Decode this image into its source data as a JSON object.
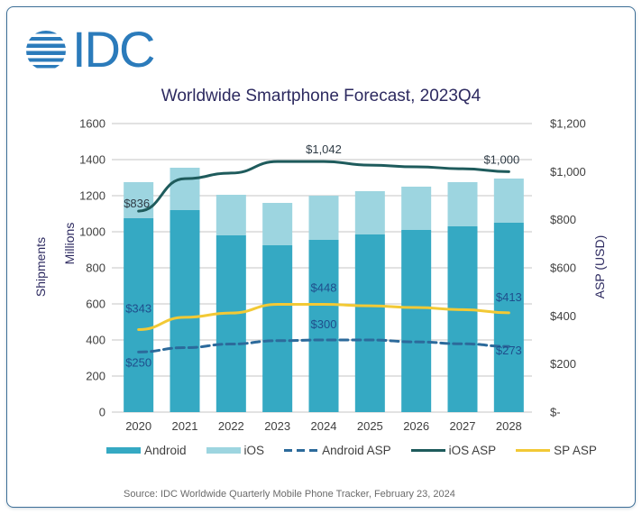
{
  "logo": {
    "text": "IDC",
    "color": "#2b7bbb"
  },
  "colors": {
    "android": "#35a9c3",
    "ios": "#9dd5e0",
    "android_asp": "#2c6a9b",
    "ios_asp": "#1e5b5c",
    "sp_asp": "#f2c935",
    "gridline": "#d0d0d0",
    "title": "#2d2a60"
  },
  "legend": [
    {
      "name": "Android",
      "style": "bar"
    },
    {
      "name": "iOS",
      "style": "bar"
    },
    {
      "name": "Android ASP",
      "style": "dashed-line"
    },
    {
      "name": "iOS ASP",
      "style": "line"
    },
    {
      "name": "SP ASP",
      "style": "line"
    }
  ],
  "source": "Source:  IDC Worldwide Quarterly Mobile Phone Tracker, February 23, 2024",
  "chart_data": {
    "type": "bar",
    "title": "Worldwide Smartphone Forecast, 2023Q4",
    "categories": [
      "2020",
      "2021",
      "2022",
      "2023",
      "2024",
      "2025",
      "2026",
      "2027",
      "2028"
    ],
    "y_left": {
      "label_outer": "Shipments",
      "label_inner": "Millions",
      "range": [
        0,
        1600
      ],
      "ticks": [
        "0",
        "200",
        "400",
        "600",
        "800",
        "1000",
        "1200",
        "1400",
        "1600"
      ]
    },
    "y_right": {
      "label": "ASP (USD)",
      "range": [
        0,
        1200
      ],
      "ticks": [
        "$-",
        "$200",
        "$400",
        "$600",
        "$800",
        "$1,000",
        "$1,200"
      ]
    },
    "grid": true,
    "legend_position": "bottom",
    "stacked": true,
    "series": [
      {
        "name": "Android",
        "type": "bar",
        "axis": "left",
        "values": [
          1075,
          1120,
          980,
          925,
          955,
          985,
          1010,
          1030,
          1050
        ]
      },
      {
        "name": "iOS",
        "type": "bar",
        "axis": "left",
        "values": [
          200,
          235,
          225,
          235,
          245,
          240,
          240,
          245,
          245
        ]
      },
      {
        "name": "Android ASP",
        "type": "line",
        "style": "dashed",
        "axis": "right",
        "values": [
          250,
          268,
          283,
          297,
          300,
          300,
          292,
          284,
          273
        ]
      },
      {
        "name": "iOS ASP",
        "type": "line",
        "axis": "right",
        "values": [
          836,
          971,
          994,
          1042,
          1042,
          1027,
          1020,
          1012,
          1000
        ]
      },
      {
        "name": "SP ASP",
        "type": "line",
        "axis": "right",
        "values": [
          343,
          394,
          412,
          448,
          448,
          442,
          435,
          426,
          413
        ]
      }
    ],
    "annotations": [
      {
        "series": "iOS ASP",
        "category": "2020",
        "text": "$836"
      },
      {
        "series": "iOS ASP",
        "category": "2024",
        "text": "$1,042"
      },
      {
        "series": "iOS ASP",
        "category": "2028",
        "text": "$1,000"
      },
      {
        "series": "SP ASP",
        "category": "2020",
        "text": "$343"
      },
      {
        "series": "SP ASP",
        "category": "2024",
        "text": "$448"
      },
      {
        "series": "SP ASP",
        "category": "2028",
        "text": "$413"
      },
      {
        "series": "Android ASP",
        "category": "2020",
        "text": "$250"
      },
      {
        "series": "Android ASP",
        "category": "2024",
        "text": "$300"
      },
      {
        "series": "Android ASP",
        "category": "2028",
        "text": "$273"
      }
    ]
  }
}
